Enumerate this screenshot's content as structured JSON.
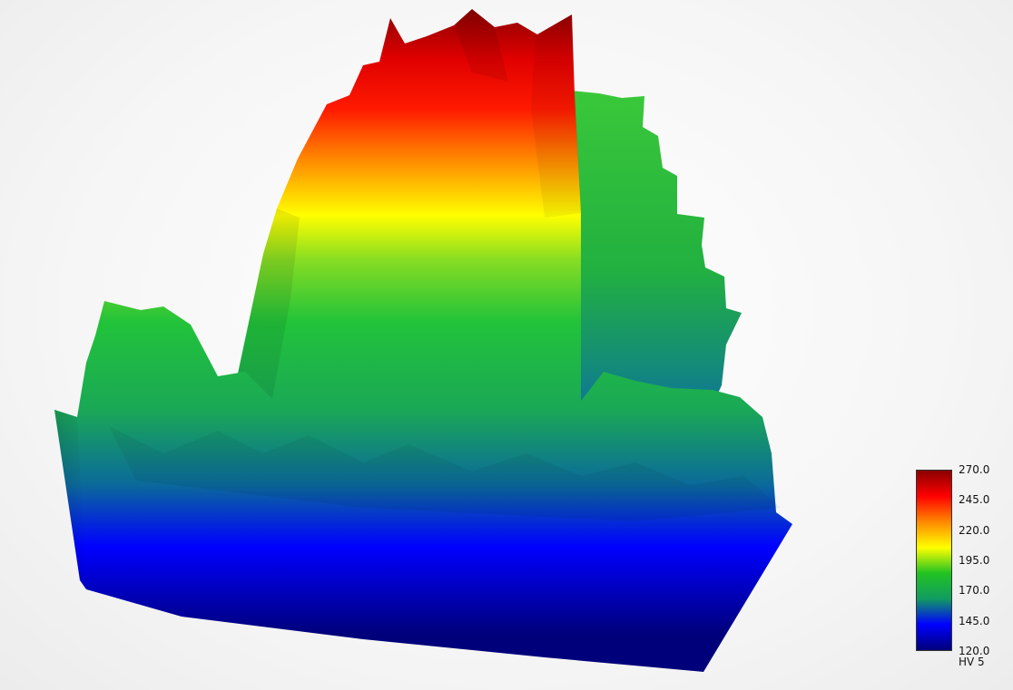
{
  "chart_data": {
    "type": "surface3d",
    "title": "",
    "colorbar": {
      "min": 120.0,
      "max": 270.0,
      "ticks": [
        "270.0",
        "245.0",
        "220.0",
        "195.0",
        "170.0",
        "145.0",
        "120.0"
      ],
      "label": "HV 5",
      "colormap": [
        "#00007a",
        "#0000ff",
        "#119c61",
        "#22c322",
        "#ffff00",
        "#ff8800",
        "#ff0000",
        "#8b0000"
      ]
    },
    "peak_value": 270.0,
    "base_value": 120.0
  }
}
